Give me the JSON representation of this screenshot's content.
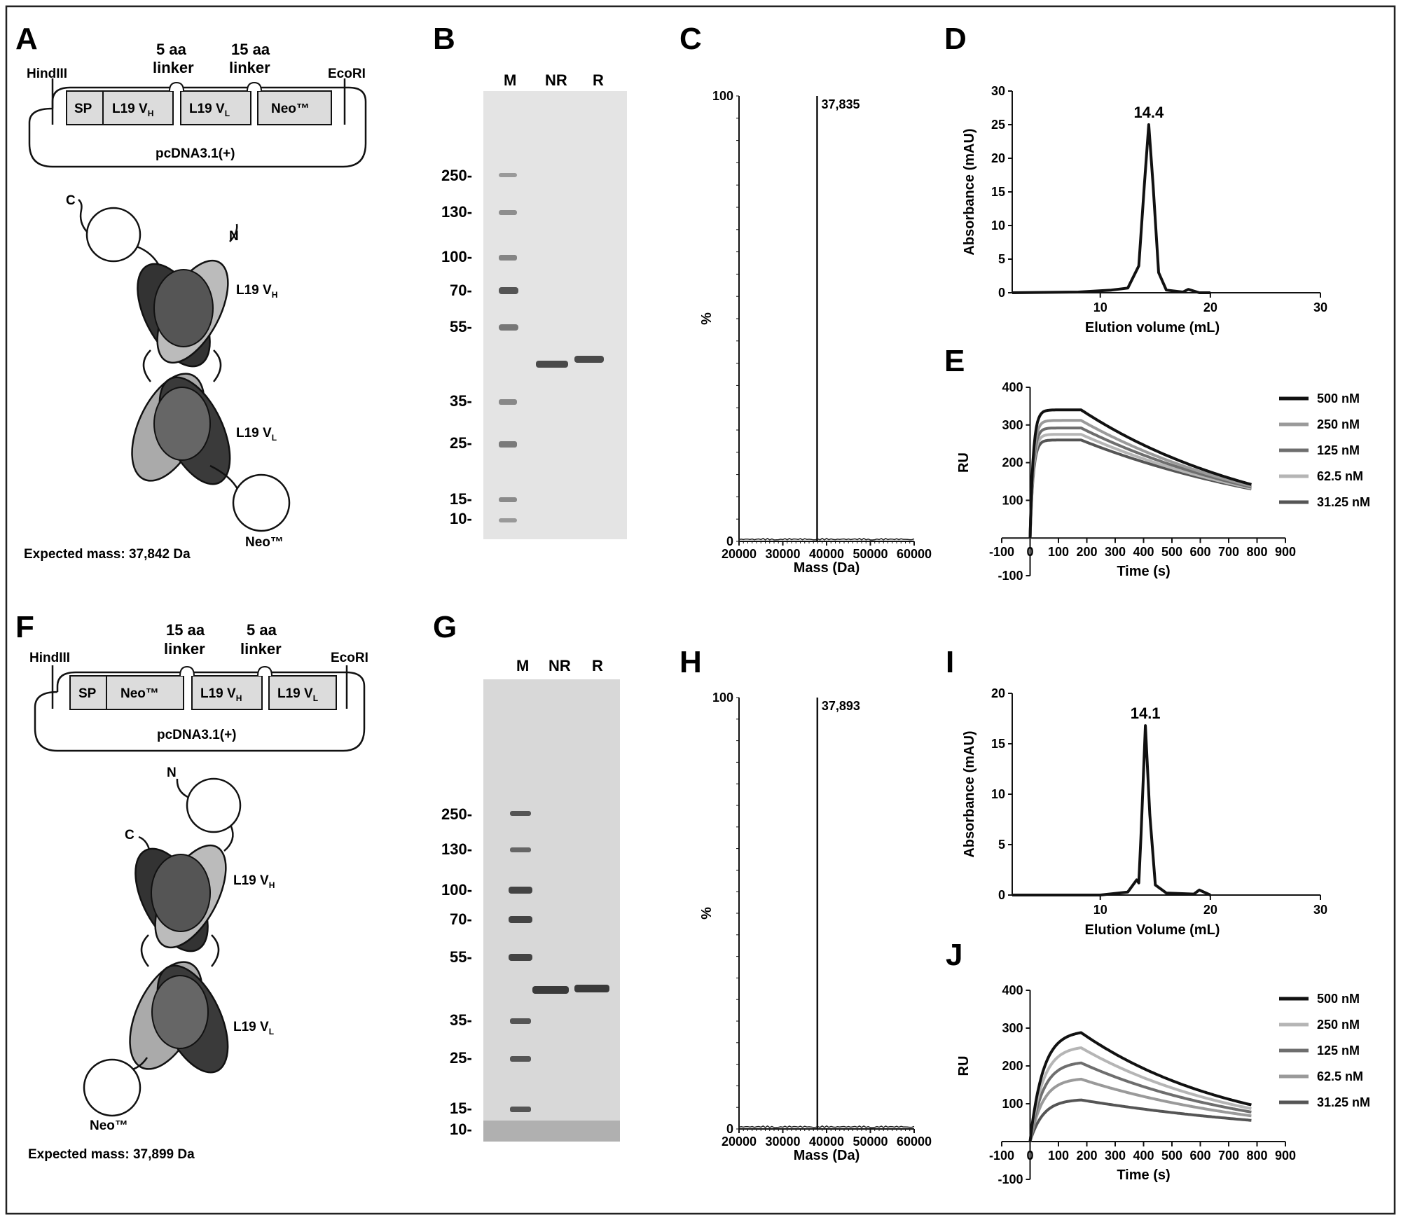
{
  "panels": {
    "a": {
      "label": "A",
      "hind": "HindIII",
      "eco": "EcoRI",
      "linker1": [
        "5 aa",
        "linker"
      ],
      "linker2": [
        "15 aa",
        "linker"
      ],
      "boxes": [
        {
          "main": "SP",
          "sub": ""
        },
        {
          "main": "L19 V",
          "sub": "H"
        },
        {
          "main": "L19 V",
          "sub": "L"
        },
        {
          "main": "Neo™",
          "sub": ""
        }
      ],
      "plasmid": "pcDNA3.1(+)",
      "term_c": "C",
      "term_n": "N",
      "vh": {
        "main": "L19 V",
        "sub": "H"
      },
      "vl": {
        "main": "L19 V",
        "sub": "L"
      },
      "neo": "Neo™",
      "mass": "Expected mass: 37,842 Da"
    },
    "f": {
      "label": "F",
      "hind": "HindIII",
      "eco": "EcoRI",
      "linker1": [
        "15 aa",
        "linker"
      ],
      "linker2": [
        "5 aa",
        "linker"
      ],
      "boxes": [
        {
          "main": "SP",
          "sub": ""
        },
        {
          "main": "Neo™",
          "sub": ""
        },
        {
          "main": "L19 V",
          "sub": "H"
        },
        {
          "main": "L19 V",
          "sub": "L"
        }
      ],
      "plasmid": "pcDNA3.1(+)",
      "term_c": "C",
      "term_n": "N",
      "vh": {
        "main": "L19 V",
        "sub": "H"
      },
      "vl": {
        "main": "L19 V",
        "sub": "L"
      },
      "neo": "Neo™",
      "mass": "Expected mass: 37,899 Da"
    },
    "b": {
      "label": "B",
      "lanes": [
        "M",
        "NR",
        "R"
      ],
      "markers": [
        "250-",
        "130-",
        "100-",
        "70-",
        "55-",
        "35-",
        "25-",
        "15-",
        "10-"
      ]
    },
    "g": {
      "label": "G",
      "lanes": [
        "M",
        "NR",
        "R"
      ],
      "markers": [
        "250-",
        "130-",
        "100-",
        "70-",
        "55-",
        "35-",
        "25-",
        "15-",
        "10-"
      ]
    },
    "c": {
      "label": "C"
    },
    "h": {
      "label": "H"
    },
    "d": {
      "label": "D"
    },
    "i": {
      "label": "I"
    },
    "e": {
      "label": "E"
    },
    "j": {
      "label": "J"
    }
  },
  "chart_data": [
    {
      "panel": "C",
      "type": "line",
      "xlabel": "Mass (Da)",
      "ylabel": "%",
      "xlim": [
        20000,
        60000
      ],
      "ylim": [
        0,
        100
      ],
      "xticks": [
        "20000",
        "30000",
        "40000",
        "50000",
        "60000"
      ],
      "yticks": [
        "0",
        "100"
      ],
      "x": [
        37835
      ],
      "y": [
        100
      ],
      "annotation": "37,835"
    },
    {
      "panel": "H",
      "type": "line",
      "xlabel": "Mass (Da)",
      "ylabel": "%",
      "xlim": [
        20000,
        60000
      ],
      "ylim": [
        0,
        100
      ],
      "xticks": [
        "20000",
        "30000",
        "40000",
        "50000",
        "60000"
      ],
      "yticks": [
        "0",
        "100"
      ],
      "x": [
        37893
      ],
      "y": [
        100
      ],
      "annotation": "37,893"
    },
    {
      "panel": "D",
      "type": "line",
      "xlabel": "Elution volume (mL)",
      "ylabel": "Absorbance (mAU)",
      "xlim": [
        2,
        30
      ],
      "ylim": [
        0,
        30
      ],
      "xticks": [
        10,
        20,
        30
      ],
      "yticks": [
        0,
        5,
        10,
        15,
        20,
        25,
        30
      ],
      "x": [
        2,
        8,
        11,
        12.5,
        13.5,
        14,
        14.4,
        14.8,
        15.3,
        16,
        17.5,
        18,
        19,
        20
      ],
      "y": [
        0,
        0.1,
        0.4,
        0.7,
        4,
        16,
        25,
        16,
        3,
        0.4,
        0.1,
        0.5,
        0,
        0
      ],
      "annotation": "14.4"
    },
    {
      "panel": "I",
      "type": "line",
      "xlabel": "Elution Volume (mL)",
      "ylabel": "Absorbance (mAU)",
      "xlim": [
        2,
        30
      ],
      "ylim": [
        0,
        20
      ],
      "xticks": [
        10,
        20,
        30
      ],
      "yticks": [
        0,
        5,
        10,
        15,
        20
      ],
      "x": [
        2,
        10,
        12.5,
        13.3,
        13.5,
        13.7,
        14.1,
        14.5,
        15,
        16,
        18.5,
        19,
        20
      ],
      "y": [
        0,
        0,
        0.3,
        1.5,
        1.2,
        6,
        16.8,
        8,
        1,
        0.2,
        0.1,
        0.5,
        0
      ],
      "annotation": "14.1"
    },
    {
      "panel": "E",
      "type": "line",
      "xlabel": "Time (s)",
      "ylabel": "RU",
      "xlim": [
        -100,
        900
      ],
      "ylim": [
        -100,
        400
      ],
      "xticks": [
        -100,
        0,
        100,
        200,
        300,
        400,
        500,
        600,
        700,
        800,
        900
      ],
      "yticks": [
        -100,
        100,
        200,
        300,
        400
      ],
      "assoc_end": 180,
      "end": 780,
      "series": [
        {
          "name": "500 nM",
          "color": "#111111",
          "plateau": 340,
          "end_value": 142
        },
        {
          "name": "250 nM",
          "color": "#9a9a9a",
          "plateau": 312,
          "end_value": 138
        },
        {
          "name": "125 nM",
          "color": "#6e6e6e",
          "plateau": 292,
          "end_value": 135
        },
        {
          "name": "62.5 nM",
          "color": "#b5b5b5",
          "plateau": 275,
          "end_value": 132
        },
        {
          "name": "31.25 nM",
          "color": "#555555",
          "plateau": 260,
          "end_value": 130
        }
      ]
    },
    {
      "panel": "J",
      "type": "line",
      "xlabel": "Time (s)",
      "ylabel": "RU",
      "xlim": [
        -100,
        900
      ],
      "ylim": [
        -100,
        400
      ],
      "xticks": [
        -100,
        0,
        100,
        200,
        300,
        400,
        500,
        600,
        700,
        800,
        900
      ],
      "yticks": [
        -100,
        100,
        200,
        300,
        400
      ],
      "assoc_end": 180,
      "end": 780,
      "series": [
        {
          "name": "500 nM",
          "color": "#111111",
          "plateau": 288,
          "end_value": 97
        },
        {
          "name": "250 nM",
          "color": "#b5b5b5",
          "plateau": 248,
          "end_value": 87
        },
        {
          "name": "125 nM",
          "color": "#6e6e6e",
          "plateau": 208,
          "end_value": 78
        },
        {
          "name": "62.5 nM",
          "color": "#9a9a9a",
          "plateau": 165,
          "end_value": 68
        },
        {
          "name": "31.25 nM",
          "color": "#555555",
          "plateau": 110,
          "end_value": 56
        }
      ]
    }
  ]
}
